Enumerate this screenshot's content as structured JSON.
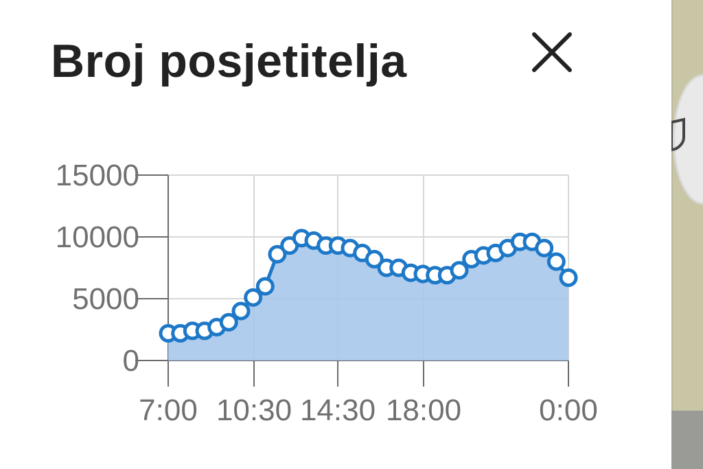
{
  "dialog": {
    "title": "Broj posjetitelja",
    "close_icon": "close-icon"
  },
  "side_panel": {
    "fab_icon": "map-pin-icon",
    "background": "#c9c6a6"
  },
  "colors": {
    "line": "#1e78c8",
    "fill": "#a7c8ec",
    "axis": "#6b6b6b",
    "grid": "#d7d7d7"
  },
  "chart_data": {
    "type": "area",
    "title": "Broj posjetitelja",
    "xlabel": "",
    "ylabel": "",
    "ylim": [
      0,
      15000
    ],
    "y_ticks": [
      "0",
      "5000",
      "10000",
      "15000"
    ],
    "x_ticks": [
      "7:00",
      "10:30",
      "14:30",
      "18:00",
      "0:00"
    ],
    "grid": true,
    "series": [
      {
        "values": [
          2200,
          2200,
          2400,
          2400,
          2700,
          3100,
          4000,
          5100,
          6000,
          8600,
          9300,
          9900,
          9700,
          9300,
          9300,
          9100,
          8700,
          8200,
          7500,
          7500,
          7100,
          7000,
          6900,
          6900,
          7300,
          8200,
          8500,
          8700,
          9100,
          9600,
          9600,
          9100,
          8000,
          6700
        ]
      }
    ]
  }
}
